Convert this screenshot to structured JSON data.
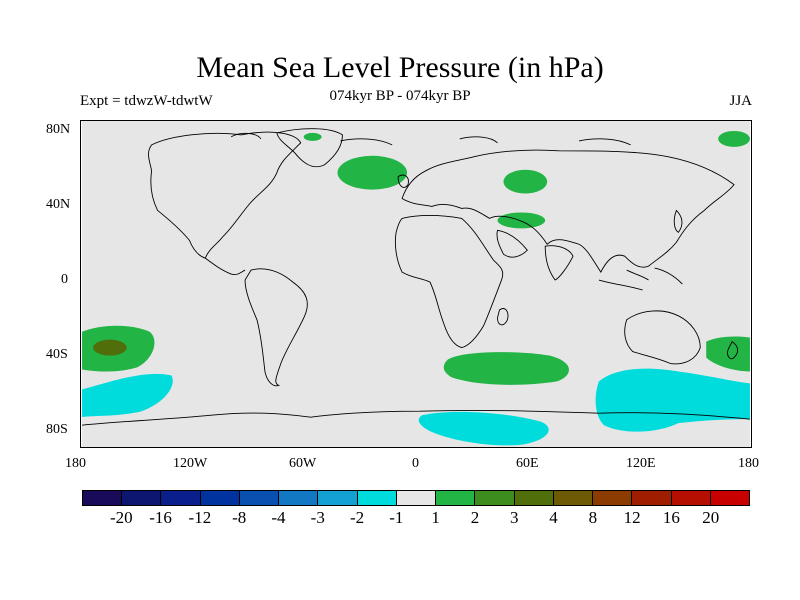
{
  "title": "Mean Sea Level Pressure (in hPa)",
  "subtitle": "074kyr BP - 074kyr BP",
  "experiment": "Expt = tdwzW-tdwtW",
  "season": "JJA",
  "lat_labels": [
    "80N",
    "40N",
    "0",
    "40S",
    "80S"
  ],
  "lon_labels": [
    "180",
    "120W",
    "60W",
    "0",
    "60E",
    "120E",
    "180"
  ],
  "colorbar": {
    "colors": [
      "#1a0a5a",
      "#0d1670",
      "#0a1f8c",
      "#0032a0",
      "#0a50b0",
      "#1278c4",
      "#14a0d2",
      "#00dcdc",
      "#e6e6e6",
      "#23b446",
      "#3c8c1e",
      "#506e0a",
      "#6e5a05",
      "#8c3c00",
      "#a01e00",
      "#b40f00",
      "#c80000"
    ],
    "labels": [
      "-20",
      "-16",
      "-12",
      "-8",
      "-4",
      "-3",
      "-2",
      "-1",
      "1",
      "2",
      "3",
      "4",
      "8",
      "12",
      "16",
      "20"
    ]
  },
  "colors": {
    "background": "#e6e6e6",
    "positive_1": "#23b446",
    "positive_2": "#506e0a",
    "negative_1": "#00dcdc",
    "coastline": "#000000"
  }
}
